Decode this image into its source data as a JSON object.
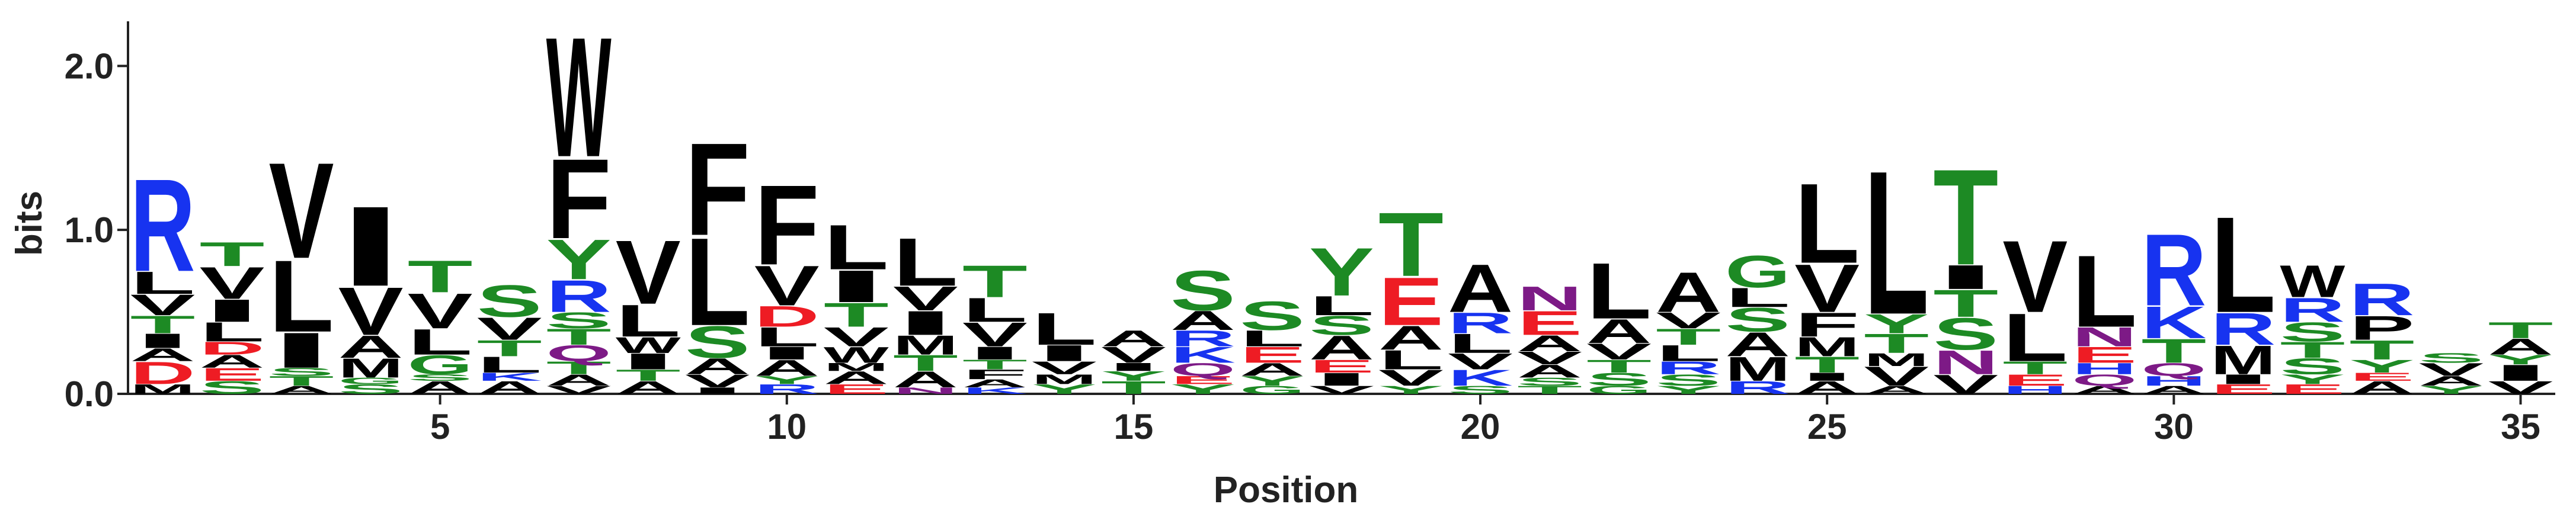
{
  "chart_data": {
    "type": "logo",
    "x_label": "Position",
    "y_label": "bits",
    "xlim": [
      0.5,
      35.5
    ],
    "xticks": [
      5,
      10,
      15,
      20,
      25,
      30,
      35
    ],
    "ylim": [
      0,
      2.2
    ],
    "yticks": [
      {
        "value": 0,
        "label": "0.0"
      },
      {
        "value": 1,
        "label": "1.0"
      },
      {
        "value": 2,
        "label": "2.0"
      }
    ],
    "letter_colors": {
      "R": "#1733f0",
      "K": "#1733f0",
      "H": "#1733f0",
      "D": "#ee1c24",
      "E": "#ee1c24",
      "S": "#1d8a24",
      "T": "#1d8a24",
      "G": "#1d8a24",
      "Y": "#1d8a24",
      "C": "#1d8a24",
      "N": "#7d1a86",
      "Q": "#7d1a86",
      "A": "#000000",
      "V": "#000000",
      "L": "#000000",
      "I": "#000000",
      "M": "#000000",
      "F": "#000000",
      "W": "#000000",
      "P": "#000000"
    },
    "x": [
      1,
      2,
      3,
      4,
      5,
      6,
      7,
      8,
      9,
      10,
      11,
      12,
      13,
      14,
      15,
      16,
      17,
      18,
      19,
      20,
      21,
      22,
      23,
      24,
      25,
      26,
      27,
      28,
      29,
      30,
      31,
      32,
      33,
      34,
      35
    ],
    "stacks": [
      [
        {
          "letter": "M",
          "bits": 0.06
        },
        {
          "letter": "D",
          "bits": 0.14
        },
        {
          "letter": "A",
          "bits": 0.08
        },
        {
          "letter": "I",
          "bits": 0.09
        },
        {
          "letter": "T",
          "bits": 0.11
        },
        {
          "letter": "V",
          "bits": 0.13
        },
        {
          "letter": "L",
          "bits": 0.14
        },
        {
          "letter": "R",
          "bits": 0.58
        }
      ],
      [
        {
          "letter": "S",
          "bits": 0.08
        },
        {
          "letter": "E",
          "bits": 0.08
        },
        {
          "letter": "A",
          "bits": 0.08
        },
        {
          "letter": "D",
          "bits": 0.08
        },
        {
          "letter": "L",
          "bits": 0.12
        },
        {
          "letter": "I",
          "bits": 0.14
        },
        {
          "letter": "V",
          "bits": 0.2
        },
        {
          "letter": "T",
          "bits": 0.15
        }
      ],
      [
        {
          "letter": "A",
          "bits": 0.05
        },
        {
          "letter": "T",
          "bits": 0.06
        },
        {
          "letter": "S",
          "bits": 0.05
        },
        {
          "letter": "I",
          "bits": 0.22
        },
        {
          "letter": "L",
          "bits": 0.45
        },
        {
          "letter": "V",
          "bits": 0.6
        }
      ],
      [
        {
          "letter": "S",
          "bits": 0.06
        },
        {
          "letter": "G",
          "bits": 0.04
        },
        {
          "letter": "M",
          "bits": 0.12
        },
        {
          "letter": "A",
          "bits": 0.14
        },
        {
          "letter": "V",
          "bits": 0.3
        },
        {
          "letter": "I",
          "bits": 0.5
        }
      ],
      [
        {
          "letter": "A",
          "bits": 0.08
        },
        {
          "letter": "S",
          "bits": 0.04
        },
        {
          "letter": "G",
          "bits": 0.12
        },
        {
          "letter": "L",
          "bits": 0.16
        },
        {
          "letter": "V",
          "bits": 0.22
        },
        {
          "letter": "T",
          "bits": 0.2
        }
      ],
      [
        {
          "letter": "A",
          "bits": 0.08
        },
        {
          "letter": "K",
          "bits": 0.05
        },
        {
          "letter": "L",
          "bits": 0.1
        },
        {
          "letter": "T",
          "bits": 0.1
        },
        {
          "letter": "V",
          "bits": 0.14
        },
        {
          "letter": "S",
          "bits": 0.2
        }
      ],
      [
        {
          "letter": "V",
          "bits": 0.05
        },
        {
          "letter": "A",
          "bits": 0.07
        },
        {
          "letter": "T",
          "bits": 0.08
        },
        {
          "letter": "Q",
          "bits": 0.1
        },
        {
          "letter": "T",
          "bits": 0.1
        },
        {
          "letter": "S",
          "bits": 0.1
        },
        {
          "letter": "R",
          "bits": 0.2
        },
        {
          "letter": "Y",
          "bits": 0.25
        },
        {
          "letter": "F",
          "bits": 0.5
        },
        {
          "letter": "W",
          "bits": 0.75
        }
      ],
      [
        {
          "letter": "A",
          "bits": 0.08
        },
        {
          "letter": "T",
          "bits": 0.07
        },
        {
          "letter": "I",
          "bits": 0.1
        },
        {
          "letter": "W",
          "bits": 0.1
        },
        {
          "letter": "L",
          "bits": 0.2
        },
        {
          "letter": "V",
          "bits": 0.4
        }
      ],
      [
        {
          "letter": "I",
          "bits": 0.04
        },
        {
          "letter": "V",
          "bits": 0.08
        },
        {
          "letter": "A",
          "bits": 0.1
        },
        {
          "letter": "S",
          "bits": 0.2
        },
        {
          "letter": "L",
          "bits": 0.55
        },
        {
          "letter": "F",
          "bits": 0.58
        }
      ],
      [
        {
          "letter": "R",
          "bits": 0.06
        },
        {
          "letter": "Y",
          "bits": 0.05
        },
        {
          "letter": "A",
          "bits": 0.1
        },
        {
          "letter": "I",
          "bits": 0.08
        },
        {
          "letter": "L",
          "bits": 0.12
        },
        {
          "letter": "D",
          "bits": 0.13
        },
        {
          "letter": "V",
          "bits": 0.25
        },
        {
          "letter": "F",
          "bits": 0.5
        }
      ],
      [
        {
          "letter": "E",
          "bits": 0.06
        },
        {
          "letter": "A",
          "bits": 0.08
        },
        {
          "letter": "M",
          "bits": 0.05
        },
        {
          "letter": "W",
          "bits": 0.1
        },
        {
          "letter": "V",
          "bits": 0.12
        },
        {
          "letter": "T",
          "bits": 0.15
        },
        {
          "letter": "I",
          "bits": 0.2
        },
        {
          "letter": "L",
          "bits": 0.28
        }
      ],
      [
        {
          "letter": "N",
          "bits": 0.04
        },
        {
          "letter": "A",
          "bits": 0.1
        },
        {
          "letter": "T",
          "bits": 0.1
        },
        {
          "letter": "M",
          "bits": 0.12
        },
        {
          "letter": "I",
          "bits": 0.15
        },
        {
          "letter": "V",
          "bits": 0.15
        },
        {
          "letter": "L",
          "bits": 0.3
        }
      ],
      [
        {
          "letter": "K",
          "bits": 0.04
        },
        {
          "letter": "A",
          "bits": 0.05
        },
        {
          "letter": "F",
          "bits": 0.06
        },
        {
          "letter": "T",
          "bits": 0.06
        },
        {
          "letter": "I",
          "bits": 0.08
        },
        {
          "letter": "V",
          "bits": 0.15
        },
        {
          "letter": "L",
          "bits": 0.15
        },
        {
          "letter": "T",
          "bits": 0.2
        }
      ],
      [
        {
          "letter": "Y",
          "bits": 0.06
        },
        {
          "letter": "M",
          "bits": 0.06
        },
        {
          "letter": "V",
          "bits": 0.08
        },
        {
          "letter": "I",
          "bits": 0.1
        },
        {
          "letter": "L",
          "bits": 0.2
        }
      ],
      [
        {
          "letter": "T",
          "bits": 0.08
        },
        {
          "letter": "Y",
          "bits": 0.06
        },
        {
          "letter": "I",
          "bits": 0.05
        },
        {
          "letter": "V",
          "bits": 0.1
        },
        {
          "letter": "A",
          "bits": 0.1
        }
      ],
      [
        {
          "letter": "Y",
          "bits": 0.06
        },
        {
          "letter": "E",
          "bits": 0.05
        },
        {
          "letter": "Q",
          "bits": 0.08
        },
        {
          "letter": "K",
          "bits": 0.1
        },
        {
          "letter": "R",
          "bits": 0.1
        },
        {
          "letter": "A",
          "bits": 0.12
        },
        {
          "letter": "S",
          "bits": 0.25
        }
      ],
      [
        {
          "letter": "G",
          "bits": 0.05
        },
        {
          "letter": "Y",
          "bits": 0.06
        },
        {
          "letter": "A",
          "bits": 0.08
        },
        {
          "letter": "E",
          "bits": 0.1
        },
        {
          "letter": "L",
          "bits": 0.1
        },
        {
          "letter": "S",
          "bits": 0.18
        }
      ],
      [
        {
          "letter": "V",
          "bits": 0.05
        },
        {
          "letter": "I",
          "bits": 0.08
        },
        {
          "letter": "E",
          "bits": 0.08
        },
        {
          "letter": "A",
          "bits": 0.15
        },
        {
          "letter": "S",
          "bits": 0.12
        },
        {
          "letter": "L",
          "bits": 0.12
        },
        {
          "letter": "Y",
          "bits": 0.3
        }
      ],
      [
        {
          "letter": "Y",
          "bits": 0.05
        },
        {
          "letter": "V",
          "bits": 0.1
        },
        {
          "letter": "L",
          "bits": 0.12
        },
        {
          "letter": "A",
          "bits": 0.15
        },
        {
          "letter": "E",
          "bits": 0.3
        },
        {
          "letter": "T",
          "bits": 0.4
        }
      ],
      [
        {
          "letter": "S",
          "bits": 0.05
        },
        {
          "letter": "K",
          "bits": 0.1
        },
        {
          "letter": "V",
          "bits": 0.1
        },
        {
          "letter": "L",
          "bits": 0.12
        },
        {
          "letter": "R",
          "bits": 0.13
        },
        {
          "letter": "A",
          "bits": 0.3
        }
      ],
      [
        {
          "letter": "T",
          "bits": 0.05
        },
        {
          "letter": "S",
          "bits": 0.05
        },
        {
          "letter": "A",
          "bits": 0.08
        },
        {
          "letter": "V",
          "bits": 0.08
        },
        {
          "letter": "A",
          "bits": 0.1
        },
        {
          "letter": "E",
          "bits": 0.15
        },
        {
          "letter": "N",
          "bits": 0.15
        }
      ],
      [
        {
          "letter": "G",
          "bits": 0.05
        },
        {
          "letter": "S",
          "bits": 0.08
        },
        {
          "letter": "T",
          "bits": 0.08
        },
        {
          "letter": "V",
          "bits": 0.1
        },
        {
          "letter": "A",
          "bits": 0.15
        },
        {
          "letter": "L",
          "bits": 0.35
        }
      ],
      [
        {
          "letter": "Y",
          "bits": 0.05
        },
        {
          "letter": "S",
          "bits": 0.07
        },
        {
          "letter": "R",
          "bits": 0.08
        },
        {
          "letter": "L",
          "bits": 0.1
        },
        {
          "letter": "T",
          "bits": 0.1
        },
        {
          "letter": "V",
          "bits": 0.1
        },
        {
          "letter": "A",
          "bits": 0.25
        }
      ],
      [
        {
          "letter": "R",
          "bits": 0.08
        },
        {
          "letter": "M",
          "bits": 0.15
        },
        {
          "letter": "A",
          "bits": 0.15
        },
        {
          "letter": "S",
          "bits": 0.15
        },
        {
          "letter": "L",
          "bits": 0.12
        },
        {
          "letter": "G",
          "bits": 0.2
        }
      ],
      [
        {
          "letter": "A",
          "bits": 0.08
        },
        {
          "letter": "I",
          "bits": 0.05
        },
        {
          "letter": "T",
          "bits": 0.1
        },
        {
          "letter": "M",
          "bits": 0.12
        },
        {
          "letter": "F",
          "bits": 0.15
        },
        {
          "letter": "V",
          "bits": 0.3
        },
        {
          "letter": "L",
          "bits": 0.5
        }
      ],
      [
        {
          "letter": "A",
          "bits": 0.05
        },
        {
          "letter": "V",
          "bits": 0.12
        },
        {
          "letter": "M",
          "bits": 0.08
        },
        {
          "letter": "T",
          "bits": 0.12
        },
        {
          "letter": "Y",
          "bits": 0.12
        },
        {
          "letter": "L",
          "bits": 0.9
        }
      ],
      [
        {
          "letter": "V",
          "bits": 0.12
        },
        {
          "letter": "N",
          "bits": 0.15
        },
        {
          "letter": "S",
          "bits": 0.2
        },
        {
          "letter": "T",
          "bits": 0.17
        },
        {
          "letter": "I",
          "bits": 0.15
        },
        {
          "letter": "T",
          "bits": 0.6
        }
      ],
      [
        {
          "letter": "H",
          "bits": 0.05
        },
        {
          "letter": "E",
          "bits": 0.07
        },
        {
          "letter": "T",
          "bits": 0.08
        },
        {
          "letter": "L",
          "bits": 0.3
        },
        {
          "letter": "V",
          "bits": 0.45
        }
      ],
      [
        {
          "letter": "A",
          "bits": 0.05
        },
        {
          "letter": "Q",
          "bits": 0.07
        },
        {
          "letter": "H",
          "bits": 0.07
        },
        {
          "letter": "E",
          "bits": 0.1
        },
        {
          "letter": "N",
          "bits": 0.12
        },
        {
          "letter": "L",
          "bits": 0.45
        }
      ],
      [
        {
          "letter": "A",
          "bits": 0.05
        },
        {
          "letter": "H",
          "bits": 0.06
        },
        {
          "letter": "Q",
          "bits": 0.08
        },
        {
          "letter": "T",
          "bits": 0.15
        },
        {
          "letter": "K",
          "bits": 0.2
        },
        {
          "letter": "R",
          "bits": 0.45
        }
      ],
      [
        {
          "letter": "E",
          "bits": 0.06
        },
        {
          "letter": "I",
          "bits": 0.06
        },
        {
          "letter": "M",
          "bits": 0.18
        },
        {
          "letter": "R",
          "bits": 0.2
        },
        {
          "letter": "L",
          "bits": 0.6
        }
      ],
      [
        {
          "letter": "E",
          "bits": 0.06
        },
        {
          "letter": "Y",
          "bits": 0.06
        },
        {
          "letter": "S",
          "bits": 0.1
        },
        {
          "letter": "T",
          "bits": 0.1
        },
        {
          "letter": "S",
          "bits": 0.12
        },
        {
          "letter": "R",
          "bits": 0.15
        },
        {
          "letter": "W",
          "bits": 0.2
        }
      ],
      [
        {
          "letter": "A",
          "bits": 0.08
        },
        {
          "letter": "E",
          "bits": 0.05
        },
        {
          "letter": "Y",
          "bits": 0.08
        },
        {
          "letter": "T",
          "bits": 0.12
        },
        {
          "letter": "P",
          "bits": 0.15
        },
        {
          "letter": "R",
          "bits": 0.2
        }
      ],
      [
        {
          "letter": "Y",
          "bits": 0.05
        },
        {
          "letter": "A",
          "bits": 0.06
        },
        {
          "letter": "V",
          "bits": 0.08
        },
        {
          "letter": "S",
          "bits": 0.06
        }
      ],
      [
        {
          "letter": "V",
          "bits": 0.08
        },
        {
          "letter": "I",
          "bits": 0.1
        },
        {
          "letter": "Y",
          "bits": 0.06
        },
        {
          "letter": "A",
          "bits": 0.1
        },
        {
          "letter": "T",
          "bits": 0.1
        }
      ]
    ]
  }
}
